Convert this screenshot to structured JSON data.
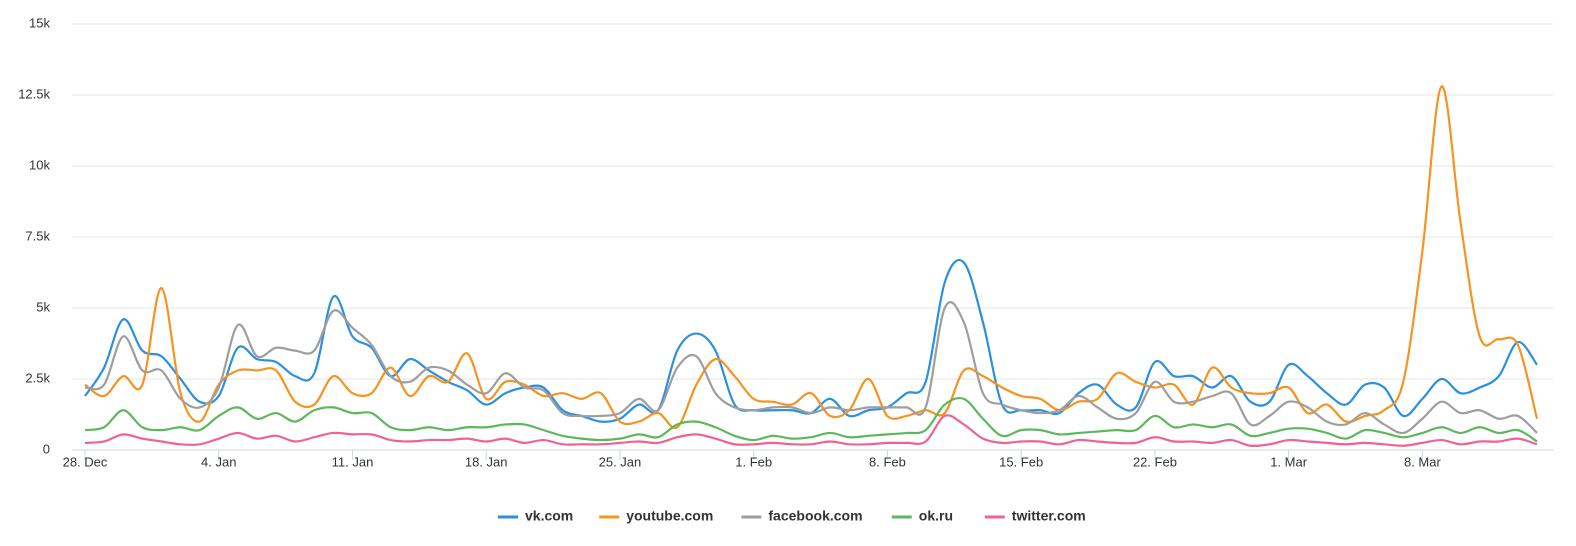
{
  "chart_data": {
    "type": "line",
    "categories": [
      "28. Dec",
      null,
      null,
      null,
      null,
      null,
      null,
      "4. Jan",
      null,
      null,
      null,
      null,
      null,
      null,
      "11. Jan",
      null,
      null,
      null,
      null,
      null,
      null,
      "18. Jan",
      null,
      null,
      null,
      null,
      null,
      null,
      "25. Jan",
      null,
      null,
      null,
      null,
      null,
      null,
      "1. Feb",
      null,
      null,
      null,
      null,
      null,
      null,
      "8. Feb",
      null,
      null,
      null,
      null,
      null,
      null,
      "15. Feb",
      null,
      null,
      null,
      null,
      null,
      null,
      "22. Feb",
      null,
      null,
      null,
      null,
      null,
      null,
      "1. Mar",
      null,
      null,
      null,
      null,
      null,
      null,
      "8. Mar",
      null,
      null,
      null,
      null,
      null,
      null
    ],
    "series": [
      {
        "name": "vk.com",
        "color": "#2b90e0",
        "values": [
          1900,
          2900,
          4600,
          3500,
          3300,
          2500,
          1700,
          1900,
          3600,
          3200,
          3100,
          2600,
          2700,
          5400,
          4000,
          3600,
          2600,
          3200,
          2800,
          2400,
          2100,
          1600,
          2000,
          2200,
          2200,
          1400,
          1200,
          1000,
          1100,
          1600,
          1400,
          3500,
          4100,
          3500,
          1600,
          1400,
          1400,
          1400,
          1300,
          1800,
          1200,
          1400,
          1500,
          2000,
          2400,
          5900,
          6600,
          4500,
          1600,
          1400,
          1400,
          1300,
          2000,
          2300,
          1600,
          1500,
          3100,
          2600,
          2600,
          2200,
          2600,
          1700,
          1700,
          3000,
          2600,
          2000,
          1600,
          2300,
          2200,
          1200,
          1800,
          2500,
          2000,
          2200,
          2600,
          3800,
          3000
        ]
      },
      {
        "name": "youtube.com",
        "color": "#f7931e",
        "values": [
          2300,
          1900,
          2600,
          2300,
          5700,
          2000,
          1000,
          2300,
          2800,
          2800,
          2800,
          1700,
          1600,
          2600,
          2000,
          2000,
          2900,
          1900,
          2600,
          2400,
          3400,
          1800,
          2400,
          2300,
          1900,
          2000,
          1800,
          2000,
          1000,
          1000,
          1300,
          800,
          2300,
          3200,
          2600,
          1800,
          1700,
          1600,
          2000,
          1200,
          1400,
          2500,
          1200,
          1200,
          1400,
          1300,
          2800,
          2600,
          2200,
          1900,
          1800,
          1400,
          1700,
          1800,
          2700,
          2400,
          2200,
          2300,
          1600,
          2900,
          2200,
          2000,
          2000,
          2200,
          1300,
          1600,
          1000,
          1200,
          1400,
          2400,
          7000,
          12800,
          8000,
          4000,
          3900,
          3700,
          1100
        ]
      },
      {
        "name": "facebook.com",
        "color": "#9e9e9e",
        "values": [
          2200,
          2300,
          4000,
          2800,
          2800,
          1800,
          1500,
          2200,
          4400,
          3300,
          3600,
          3500,
          3500,
          4900,
          4300,
          3700,
          2600,
          2400,
          2900,
          2800,
          2300,
          2000,
          2700,
          2200,
          2100,
          1300,
          1200,
          1200,
          1300,
          1800,
          1400,
          2900,
          3300,
          2000,
          1500,
          1400,
          1500,
          1500,
          1300,
          1500,
          1400,
          1500,
          1500,
          1500,
          1500,
          5000,
          4500,
          2000,
          1600,
          1400,
          1300,
          1400,
          1900,
          1500,
          1100,
          1300,
          2400,
          1700,
          1700,
          1900,
          2000,
          900,
          1200,
          1700,
          1500,
          1000,
          900,
          1300,
          900,
          600,
          1100,
          1700,
          1300,
          1400,
          1100,
          1200,
          600
        ]
      },
      {
        "name": "ok.ru",
        "color": "#5cb85c",
        "values": [
          700,
          800,
          1400,
          800,
          700,
          800,
          700,
          1200,
          1500,
          1100,
          1300,
          1000,
          1400,
          1500,
          1300,
          1300,
          800,
          700,
          800,
          700,
          800,
          800,
          900,
          900,
          700,
          500,
          400,
          350,
          400,
          550,
          450,
          900,
          1000,
          800,
          500,
          350,
          500,
          400,
          450,
          600,
          450,
          500,
          550,
          600,
          700,
          1600,
          1800,
          1100,
          500,
          700,
          700,
          550,
          600,
          650,
          700,
          700,
          1200,
          800,
          900,
          800,
          900,
          500,
          600,
          750,
          750,
          600,
          400,
          700,
          600,
          450,
          600,
          800,
          600,
          800,
          600,
          700,
          300
        ]
      },
      {
        "name": "twitter.com",
        "color": "#f06292",
        "values": [
          250,
          300,
          550,
          400,
          300,
          200,
          200,
          400,
          600,
          400,
          500,
          300,
          450,
          600,
          550,
          550,
          350,
          300,
          350,
          350,
          400,
          300,
          400,
          250,
          350,
          200,
          200,
          200,
          250,
          300,
          250,
          450,
          550,
          400,
          200,
          200,
          250,
          200,
          200,
          300,
          200,
          200,
          250,
          250,
          300,
          1200,
          900,
          400,
          250,
          300,
          300,
          200,
          350,
          300,
          250,
          250,
          450,
          300,
          300,
          250,
          350,
          150,
          200,
          350,
          300,
          250,
          200,
          250,
          200,
          150,
          250,
          350,
          200,
          300,
          300,
          400,
          200
        ]
      }
    ],
    "ylim": [
      0,
      15000
    ],
    "yticks": [
      0,
      {
        "value": 2500,
        "label": "2.5k"
      },
      {
        "value": 5000,
        "label": "5k"
      },
      {
        "value": 7500,
        "label": "7.5k"
      },
      {
        "value": 10000,
        "label": "10k"
      },
      {
        "value": 12500,
        "label": "12.5k"
      },
      {
        "value": 15000,
        "label": "15k"
      }
    ],
    "grid": true,
    "legend": "bottom"
  }
}
